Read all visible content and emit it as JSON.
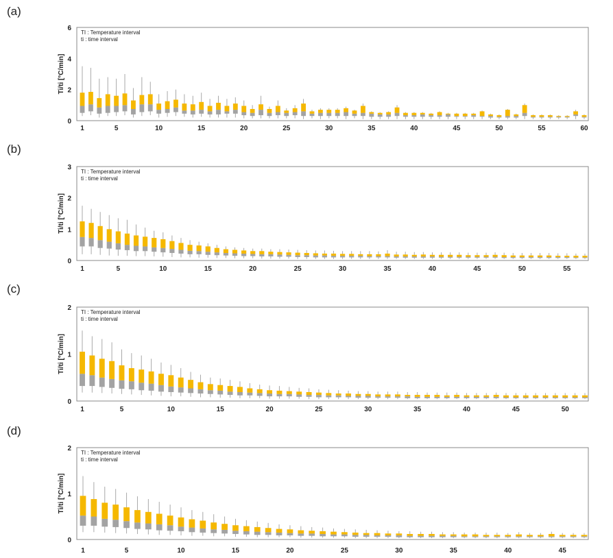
{
  "colors": {
    "upper": "#f5b800",
    "lower": "#a3a3a3",
    "whisker": "#a8a8a8",
    "frame": "#8a8a8a"
  },
  "chart_data": [
    {
      "type": "box",
      "label": "(a)",
      "ylabel": "Ti/ti [°C/min]",
      "ylim": [
        0,
        6
      ],
      "yticks": [
        "0",
        "2",
        "4",
        "6"
      ],
      "xticks": [
        "1",
        "5",
        "10",
        "15",
        "20",
        "25",
        "30",
        "35",
        "40",
        "45",
        "50",
        "55",
        "60"
      ],
      "xtick_values": [
        1,
        5,
        10,
        15,
        20,
        25,
        30,
        35,
        40,
        45,
        50,
        55,
        60
      ],
      "x_range": [
        1,
        60
      ],
      "legend": [
        "TI : Temperature interval",
        "ti : time interval"
      ],
      "n": 60,
      "whisker_low": [
        0.3,
        0.35,
        0.2,
        0.3,
        0.3,
        0.35,
        0.2,
        0.3,
        0.35,
        0.2,
        0.25,
        0.3,
        0.25,
        0.2,
        0.25,
        0.2,
        0.2,
        0.2,
        0.2,
        0.15,
        0.15,
        0.15,
        0.15,
        0.15,
        0.15,
        0.15,
        0.1,
        0.15,
        0.1,
        0.15,
        0.15,
        0.1,
        0.15,
        0.1,
        0.1,
        0.1,
        0.1,
        0.1,
        0.1,
        0.1,
        0.1,
        0.1,
        0.1,
        0.1,
        0.1,
        0.1,
        0.1,
        0.1,
        0.1,
        0.1,
        0.1,
        0.1,
        0.1,
        0.1,
        0.1,
        0.1,
        0.1,
        0.1,
        0.1,
        0.1
      ],
      "box_low": [
        0.5,
        0.6,
        0.45,
        0.5,
        0.55,
        0.6,
        0.4,
        0.55,
        0.6,
        0.45,
        0.5,
        0.55,
        0.45,
        0.4,
        0.45,
        0.4,
        0.4,
        0.45,
        0.45,
        0.35,
        0.3,
        0.35,
        0.3,
        0.35,
        0.3,
        0.35,
        0.3,
        0.3,
        0.3,
        0.3,
        0.3,
        0.3,
        0.3,
        0.3,
        0.25,
        0.25,
        0.25,
        0.3,
        0.25,
        0.25,
        0.25,
        0.25,
        0.25,
        0.25,
        0.25,
        0.25,
        0.25,
        0.25,
        0.2,
        0.2,
        0.2,
        0.2,
        0.3,
        0.2,
        0.2,
        0.2,
        0.2,
        0.2,
        0.3,
        0.2
      ],
      "median": [
        0.95,
        1.05,
        0.85,
        0.95,
        0.95,
        1.0,
        0.75,
        1.05,
        1.05,
        0.7,
        0.75,
        0.85,
        0.65,
        0.65,
        0.7,
        0.6,
        0.7,
        0.6,
        0.7,
        0.55,
        0.5,
        0.7,
        0.5,
        0.55,
        0.5,
        0.55,
        0.6,
        0.45,
        0.5,
        0.5,
        0.5,
        0.55,
        0.45,
        0.5,
        0.45,
        0.4,
        0.4,
        0.5,
        0.35,
        0.35,
        0.4,
        0.35,
        0.35,
        0.4,
        0.3,
        0.3,
        0.35,
        0.3,
        0.3,
        0.25,
        0.3,
        0.3,
        0.5,
        0.25,
        0.25,
        0.25,
        0.25,
        0.25,
        0.4,
        0.25
      ],
      "box_high": [
        1.8,
        1.85,
        1.45,
        1.7,
        1.6,
        1.75,
        1.3,
        1.65,
        1.7,
        1.1,
        1.25,
        1.35,
        1.1,
        1.05,
        1.2,
        0.95,
        1.15,
        0.95,
        1.1,
        0.95,
        0.75,
        1.05,
        0.75,
        0.95,
        0.65,
        0.8,
        1.1,
        0.6,
        0.7,
        0.7,
        0.7,
        0.8,
        0.65,
        0.95,
        0.55,
        0.5,
        0.55,
        0.85,
        0.5,
        0.5,
        0.5,
        0.45,
        0.55,
        0.45,
        0.45,
        0.45,
        0.45,
        0.6,
        0.4,
        0.35,
        0.7,
        0.4,
        1.0,
        0.35,
        0.35,
        0.35,
        0.3,
        0.3,
        0.6,
        0.35
      ],
      "whisker_high": [
        3.5,
        3.4,
        2.7,
        2.8,
        2.7,
        3.0,
        2.1,
        2.8,
        2.5,
        1.7,
        1.9,
        2.0,
        1.7,
        1.6,
        1.8,
        1.4,
        1.6,
        1.4,
        1.5,
        1.3,
        1.0,
        1.6,
        0.9,
        1.3,
        0.8,
        1.0,
        1.4,
        0.7,
        0.8,
        0.8,
        0.8,
        0.9,
        0.7,
        1.1,
        0.6,
        0.55,
        0.6,
        1.0,
        0.55,
        0.55,
        0.55,
        0.5,
        0.6,
        0.5,
        0.5,
        0.5,
        0.5,
        0.65,
        0.45,
        0.4,
        0.75,
        0.45,
        1.1,
        0.4,
        0.4,
        0.4,
        0.35,
        0.35,
        0.7,
        0.4
      ]
    },
    {
      "type": "box",
      "label": "(b)",
      "ylabel": "Ti/ti [°C/min]",
      "ylim": [
        0,
        3
      ],
      "yticks": [
        "0",
        "1",
        "2",
        "3"
      ],
      "xticks": [
        "1",
        "5",
        "10",
        "15",
        "20",
        "25",
        "30",
        "35",
        "40",
        "45",
        "50",
        "55"
      ],
      "xtick_values": [
        1,
        5,
        10,
        15,
        20,
        25,
        30,
        35,
        40,
        45,
        50,
        55
      ],
      "x_range": [
        1,
        57
      ],
      "legend": [
        "TI : Temperature interval",
        "ti : time interval"
      ],
      "n": 57,
      "whisker_low": [
        0.2,
        0.2,
        0.18,
        0.16,
        0.15,
        0.15,
        0.14,
        0.14,
        0.13,
        0.12,
        0.11,
        0.1,
        0.1,
        0.09,
        0.09,
        0.08,
        0.08,
        0.07,
        0.07,
        0.07,
        0.06,
        0.06,
        0.06,
        0.06,
        0.05,
        0.05,
        0.05,
        0.05,
        0.05,
        0.05,
        0.05,
        0.05,
        0.05,
        0.05,
        0.05,
        0.05,
        0.05,
        0.05,
        0.05,
        0.05,
        0.05,
        0.05,
        0.05,
        0.05,
        0.05,
        0.05,
        0.05,
        0.05,
        0.05,
        0.05,
        0.05,
        0.05,
        0.05,
        0.05,
        0.05,
        0.05,
        0.05
      ],
      "box_low": [
        0.45,
        0.45,
        0.4,
        0.38,
        0.35,
        0.33,
        0.3,
        0.3,
        0.28,
        0.26,
        0.24,
        0.22,
        0.2,
        0.2,
        0.18,
        0.17,
        0.16,
        0.15,
        0.14,
        0.14,
        0.13,
        0.13,
        0.12,
        0.12,
        0.11,
        0.11,
        0.1,
        0.1,
        0.1,
        0.1,
        0.1,
        0.1,
        0.1,
        0.1,
        0.1,
        0.09,
        0.09,
        0.09,
        0.09,
        0.09,
        0.09,
        0.09,
        0.09,
        0.09,
        0.09,
        0.09,
        0.09,
        0.08,
        0.08,
        0.08,
        0.08,
        0.08,
        0.08,
        0.08,
        0.08,
        0.08,
        0.08
      ],
      "median": [
        0.75,
        0.72,
        0.65,
        0.6,
        0.55,
        0.5,
        0.47,
        0.45,
        0.42,
        0.4,
        0.37,
        0.34,
        0.31,
        0.3,
        0.28,
        0.26,
        0.24,
        0.23,
        0.22,
        0.21,
        0.2,
        0.2,
        0.19,
        0.18,
        0.17,
        0.17,
        0.16,
        0.16,
        0.15,
        0.15,
        0.15,
        0.15,
        0.14,
        0.14,
        0.14,
        0.13,
        0.13,
        0.13,
        0.13,
        0.13,
        0.12,
        0.12,
        0.12,
        0.12,
        0.12,
        0.12,
        0.12,
        0.11,
        0.11,
        0.11,
        0.11,
        0.11,
        0.11,
        0.11,
        0.11,
        0.1,
        0.1
      ],
      "box_high": [
        1.25,
        1.2,
        1.1,
        1.0,
        0.93,
        0.86,
        0.8,
        0.76,
        0.72,
        0.68,
        0.62,
        0.56,
        0.5,
        0.48,
        0.45,
        0.4,
        0.36,
        0.34,
        0.32,
        0.3,
        0.3,
        0.28,
        0.27,
        0.26,
        0.25,
        0.24,
        0.23,
        0.22,
        0.22,
        0.21,
        0.21,
        0.2,
        0.2,
        0.2,
        0.22,
        0.19,
        0.19,
        0.18,
        0.19,
        0.18,
        0.18,
        0.18,
        0.18,
        0.17,
        0.17,
        0.17,
        0.18,
        0.17,
        0.16,
        0.16,
        0.16,
        0.16,
        0.16,
        0.15,
        0.15,
        0.15,
        0.15
      ],
      "whisker_high": [
        1.75,
        1.65,
        1.55,
        1.45,
        1.35,
        1.3,
        1.15,
        1.05,
        0.95,
        0.9,
        0.8,
        0.72,
        0.65,
        0.6,
        0.55,
        0.5,
        0.45,
        0.42,
        0.4,
        0.38,
        0.38,
        0.36,
        0.36,
        0.35,
        0.34,
        0.33,
        0.32,
        0.32,
        0.31,
        0.3,
        0.3,
        0.3,
        0.3,
        0.29,
        0.33,
        0.28,
        0.28,
        0.27,
        0.27,
        0.26,
        0.26,
        0.26,
        0.26,
        0.25,
        0.25,
        0.25,
        0.26,
        0.25,
        0.24,
        0.24,
        0.24,
        0.24,
        0.24,
        0.23,
        0.23,
        0.22,
        0.22
      ]
    },
    {
      "type": "box",
      "label": "(c)",
      "ylabel": "Ti/ti [°C/min]",
      "ylim": [
        0,
        2
      ],
      "yticks": [
        "0",
        "1",
        "2"
      ],
      "xticks": [
        "1",
        "5",
        "10",
        "15",
        "20",
        "25",
        "30",
        "35",
        "40",
        "45",
        "50"
      ],
      "xtick_values": [
        1,
        5,
        10,
        15,
        20,
        25,
        30,
        35,
        40,
        45,
        50
      ],
      "x_range": [
        1,
        52
      ],
      "legend": [
        "TI : Temperature interval",
        "ti : time interval"
      ],
      "n": 52,
      "whisker_low": [
        0.18,
        0.18,
        0.17,
        0.16,
        0.15,
        0.14,
        0.13,
        0.12,
        0.11,
        0.1,
        0.1,
        0.09,
        0.08,
        0.08,
        0.07,
        0.07,
        0.06,
        0.06,
        0.06,
        0.05,
        0.05,
        0.05,
        0.05,
        0.04,
        0.04,
        0.04,
        0.04,
        0.04,
        0.04,
        0.04,
        0.04,
        0.04,
        0.04,
        0.04,
        0.04,
        0.04,
        0.04,
        0.04,
        0.04,
        0.04,
        0.04,
        0.04,
        0.04,
        0.04,
        0.04,
        0.04,
        0.04,
        0.04,
        0.04,
        0.04,
        0.04,
        0.04
      ],
      "box_low": [
        0.32,
        0.32,
        0.3,
        0.28,
        0.26,
        0.25,
        0.23,
        0.22,
        0.2,
        0.19,
        0.18,
        0.17,
        0.16,
        0.15,
        0.14,
        0.13,
        0.12,
        0.12,
        0.11,
        0.1,
        0.1,
        0.1,
        0.09,
        0.09,
        0.08,
        0.08,
        0.08,
        0.08,
        0.07,
        0.07,
        0.07,
        0.07,
        0.07,
        0.06,
        0.06,
        0.06,
        0.06,
        0.06,
        0.06,
        0.06,
        0.06,
        0.06,
        0.06,
        0.06,
        0.06,
        0.06,
        0.06,
        0.06,
        0.06,
        0.06,
        0.06,
        0.06
      ],
      "median": [
        0.58,
        0.55,
        0.5,
        0.47,
        0.44,
        0.42,
        0.39,
        0.37,
        0.34,
        0.31,
        0.29,
        0.27,
        0.25,
        0.23,
        0.22,
        0.2,
        0.19,
        0.18,
        0.17,
        0.16,
        0.15,
        0.15,
        0.14,
        0.13,
        0.13,
        0.12,
        0.12,
        0.11,
        0.11,
        0.11,
        0.1,
        0.1,
        0.1,
        0.1,
        0.09,
        0.09,
        0.09,
        0.09,
        0.09,
        0.09,
        0.09,
        0.09,
        0.09,
        0.08,
        0.08,
        0.08,
        0.08,
        0.08,
        0.08,
        0.08,
        0.08,
        0.08
      ],
      "box_high": [
        1.05,
        0.97,
        0.9,
        0.85,
        0.76,
        0.7,
        0.67,
        0.63,
        0.58,
        0.55,
        0.5,
        0.45,
        0.4,
        0.36,
        0.34,
        0.32,
        0.3,
        0.27,
        0.25,
        0.23,
        0.22,
        0.21,
        0.2,
        0.19,
        0.18,
        0.17,
        0.16,
        0.16,
        0.15,
        0.15,
        0.14,
        0.14,
        0.14,
        0.13,
        0.13,
        0.13,
        0.13,
        0.12,
        0.13,
        0.12,
        0.12,
        0.12,
        0.13,
        0.12,
        0.12,
        0.12,
        0.12,
        0.12,
        0.12,
        0.12,
        0.12,
        0.12
      ],
      "whisker_high": [
        1.5,
        1.38,
        1.32,
        1.25,
        1.1,
        1.02,
        0.97,
        0.9,
        0.82,
        0.77,
        0.7,
        0.62,
        0.56,
        0.5,
        0.48,
        0.45,
        0.42,
        0.38,
        0.35,
        0.33,
        0.32,
        0.3,
        0.28,
        0.27,
        0.25,
        0.24,
        0.23,
        0.22,
        0.21,
        0.21,
        0.2,
        0.2,
        0.2,
        0.19,
        0.19,
        0.18,
        0.18,
        0.18,
        0.18,
        0.17,
        0.17,
        0.17,
        0.18,
        0.17,
        0.17,
        0.17,
        0.17,
        0.17,
        0.17,
        0.17,
        0.17,
        0.17
      ]
    },
    {
      "type": "box",
      "label": "(d)",
      "ylabel": "Ti/ti [°C/min]",
      "ylim": [
        0,
        2
      ],
      "yticks": [
        "0",
        "1",
        "2"
      ],
      "xticks": [
        "1",
        "5",
        "10",
        "15",
        "20",
        "25",
        "30",
        "35",
        "40",
        "45"
      ],
      "xtick_values": [
        1,
        5,
        10,
        15,
        20,
        25,
        30,
        35,
        40,
        45
      ],
      "x_range": [
        1,
        47
      ],
      "legend": [
        "TI : Temperature interval",
        "ti : time interval"
      ],
      "n": 47,
      "whisker_low": [
        0.16,
        0.16,
        0.15,
        0.14,
        0.13,
        0.12,
        0.11,
        0.1,
        0.1,
        0.09,
        0.08,
        0.08,
        0.07,
        0.07,
        0.06,
        0.06,
        0.05,
        0.05,
        0.05,
        0.05,
        0.04,
        0.04,
        0.04,
        0.04,
        0.04,
        0.03,
        0.03,
        0.03,
        0.03,
        0.03,
        0.03,
        0.03,
        0.03,
        0.03,
        0.03,
        0.03,
        0.03,
        0.03,
        0.03,
        0.03,
        0.03,
        0.03,
        0.03,
        0.03,
        0.03,
        0.03,
        0.03
      ],
      "box_low": [
        0.3,
        0.3,
        0.28,
        0.27,
        0.25,
        0.23,
        0.22,
        0.2,
        0.19,
        0.18,
        0.16,
        0.15,
        0.14,
        0.13,
        0.12,
        0.11,
        0.1,
        0.1,
        0.09,
        0.09,
        0.08,
        0.08,
        0.07,
        0.07,
        0.07,
        0.06,
        0.06,
        0.06,
        0.06,
        0.05,
        0.05,
        0.05,
        0.05,
        0.05,
        0.05,
        0.05,
        0.05,
        0.05,
        0.05,
        0.05,
        0.05,
        0.05,
        0.05,
        0.05,
        0.05,
        0.05,
        0.05
      ],
      "median": [
        0.52,
        0.5,
        0.45,
        0.43,
        0.4,
        0.37,
        0.35,
        0.33,
        0.31,
        0.28,
        0.26,
        0.24,
        0.22,
        0.21,
        0.19,
        0.18,
        0.17,
        0.16,
        0.15,
        0.14,
        0.13,
        0.13,
        0.12,
        0.11,
        0.11,
        0.1,
        0.1,
        0.09,
        0.09,
        0.09,
        0.08,
        0.08,
        0.08,
        0.08,
        0.08,
        0.07,
        0.07,
        0.07,
        0.07,
        0.07,
        0.07,
        0.07,
        0.07,
        0.07,
        0.07,
        0.07,
        0.07
      ],
      "box_high": [
        0.95,
        0.88,
        0.8,
        0.76,
        0.7,
        0.64,
        0.6,
        0.56,
        0.52,
        0.48,
        0.44,
        0.41,
        0.37,
        0.34,
        0.31,
        0.29,
        0.27,
        0.25,
        0.23,
        0.22,
        0.2,
        0.19,
        0.18,
        0.17,
        0.16,
        0.15,
        0.14,
        0.14,
        0.13,
        0.13,
        0.12,
        0.12,
        0.12,
        0.11,
        0.11,
        0.11,
        0.11,
        0.1,
        0.1,
        0.1,
        0.11,
        0.1,
        0.1,
        0.12,
        0.1,
        0.1,
        0.1
      ],
      "whisker_high": [
        1.38,
        1.25,
        1.15,
        1.1,
        1.02,
        0.94,
        0.88,
        0.82,
        0.76,
        0.7,
        0.64,
        0.6,
        0.55,
        0.5,
        0.45,
        0.42,
        0.39,
        0.36,
        0.33,
        0.31,
        0.29,
        0.27,
        0.26,
        0.24,
        0.23,
        0.22,
        0.21,
        0.2,
        0.19,
        0.18,
        0.18,
        0.17,
        0.17,
        0.16,
        0.16,
        0.15,
        0.15,
        0.15,
        0.15,
        0.14,
        0.16,
        0.14,
        0.14,
        0.17,
        0.14,
        0.14,
        0.14
      ]
    }
  ]
}
